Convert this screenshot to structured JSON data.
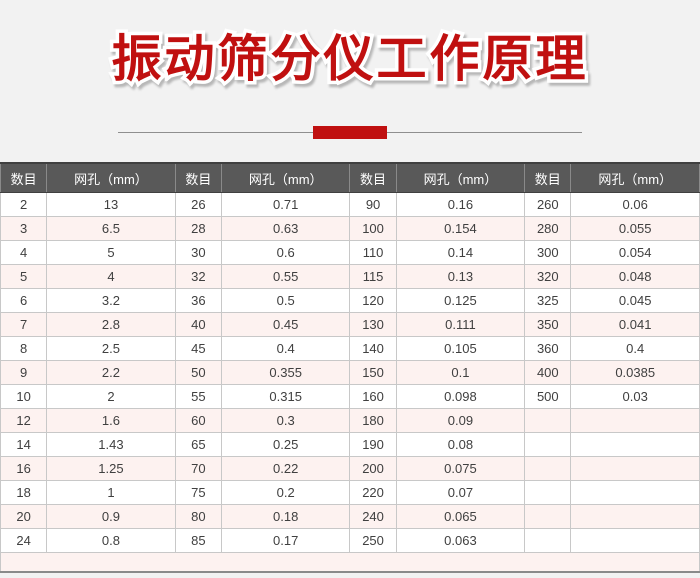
{
  "page": {
    "background": "#f2f2f2"
  },
  "header": {
    "title": "振动筛分仪工作原理",
    "title_color": "#c01010",
    "divider_accent_color": "#c01010",
    "divider_line_color": "#8f8f8f"
  },
  "table": {
    "columns": [
      "数目",
      "网孔（mm）",
      "数目",
      "网孔（mm）",
      "数目",
      "网孔（mm）",
      "数目",
      "网孔（mm）"
    ],
    "rows": [
      [
        "2",
        "13",
        "26",
        "0.71",
        "90",
        "0.16",
        "260",
        "0.06"
      ],
      [
        "3",
        "6.5",
        "28",
        "0.63",
        "100",
        "0.154",
        "280",
        "0.055"
      ],
      [
        "4",
        "5",
        "30",
        "0.6",
        "110",
        "0.14",
        "300",
        "0.054"
      ],
      [
        "5",
        "4",
        "32",
        "0.55",
        "115",
        "0.13",
        "320",
        "0.048"
      ],
      [
        "6",
        "3.2",
        "36",
        "0.5",
        "120",
        "0.125",
        "325",
        "0.045"
      ],
      [
        "7",
        "2.8",
        "40",
        "0.45",
        "130",
        "0.111",
        "350",
        "0.041"
      ],
      [
        "8",
        "2.5",
        "45",
        "0.4",
        "140",
        "0.105",
        "360",
        "0.4"
      ],
      [
        "9",
        "2.2",
        "50",
        "0.355",
        "150",
        "0.1",
        "400",
        "0.0385"
      ],
      [
        "10",
        "2",
        "55",
        "0.315",
        "160",
        "0.098",
        "500",
        "0.03"
      ],
      [
        "12",
        "1.6",
        "60",
        "0.3",
        "180",
        "0.09",
        "",
        ""
      ],
      [
        "14",
        "1.43",
        "65",
        "0.25",
        "190",
        "0.08",
        "",
        ""
      ],
      [
        "16",
        "1.25",
        "70",
        "0.22",
        "200",
        "0.075",
        "",
        ""
      ],
      [
        "18",
        "1",
        "75",
        "0.2",
        "220",
        "0.07",
        "",
        ""
      ],
      [
        "20",
        "0.9",
        "80",
        "0.18",
        "240",
        "0.065",
        "",
        ""
      ],
      [
        "24",
        "0.8",
        "85",
        "0.17",
        "250",
        "0.063",
        "",
        ""
      ]
    ],
    "colors": {
      "header_bg": "#595959",
      "header_text": "#ffffff",
      "row_alt_bg": "#fdf2f0",
      "cell_text": "#404040"
    }
  }
}
